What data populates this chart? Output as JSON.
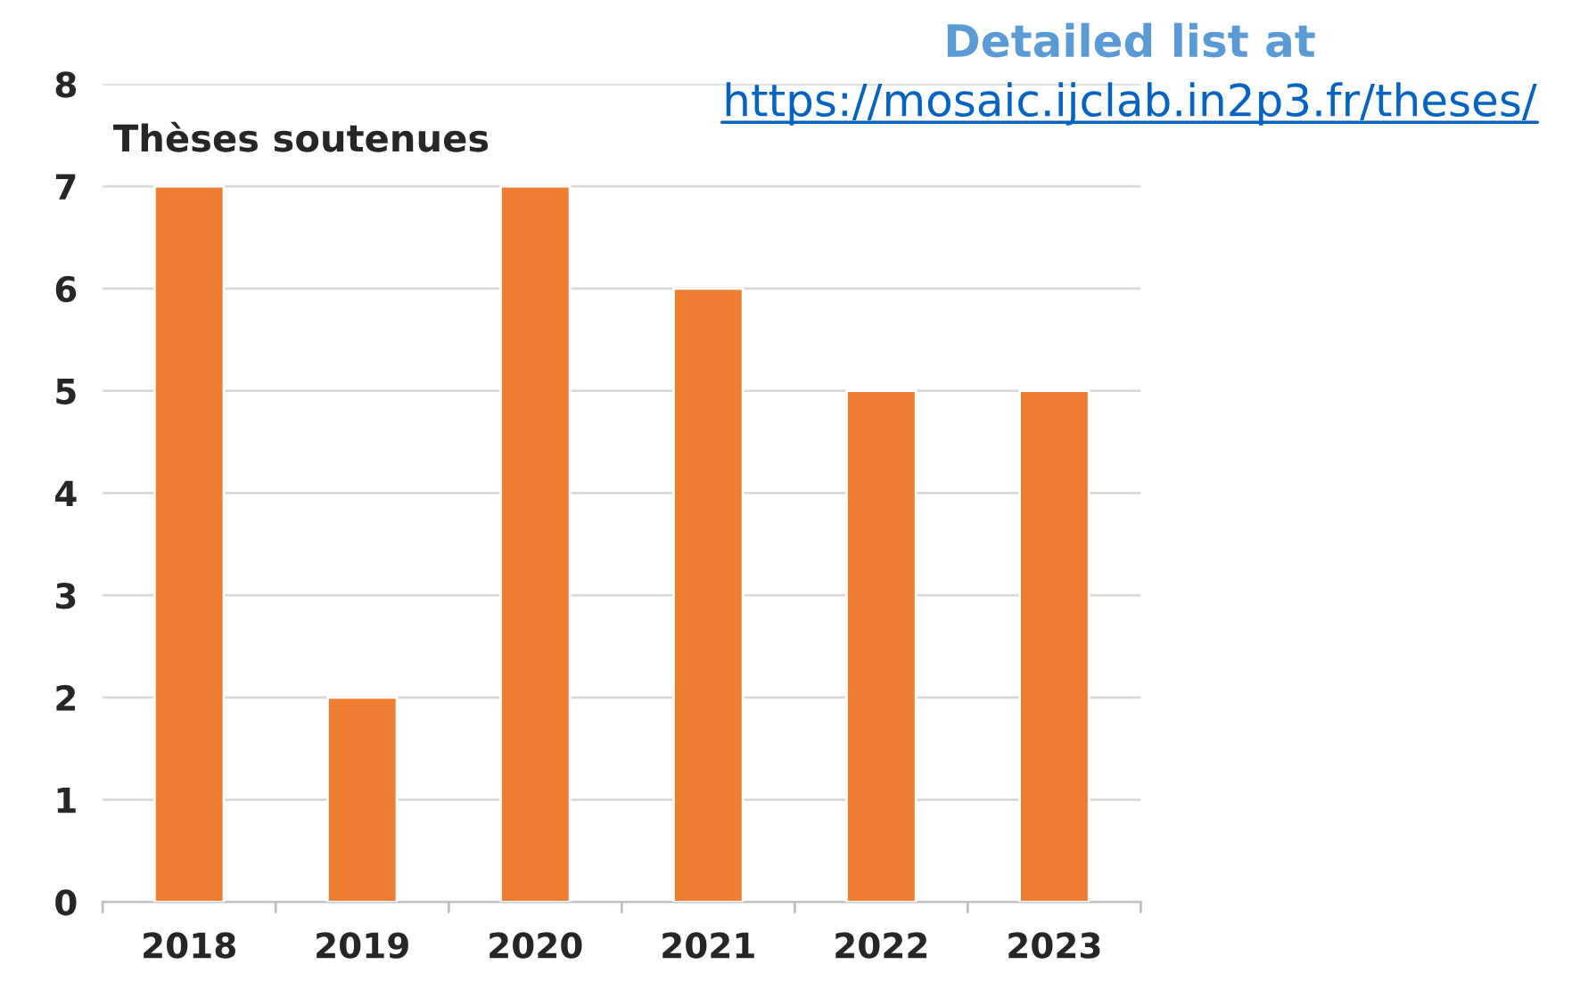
{
  "chart_data": {
    "type": "bar",
    "title": "Thèses soutenues",
    "categories": [
      "2018",
      "2019",
      "2020",
      "2021",
      "2022",
      "2023"
    ],
    "values": [
      7,
      2,
      7,
      6,
      5,
      5
    ],
    "color": "#ed7d31",
    "ylim": [
      0,
      8
    ],
    "yticks": [
      0,
      1,
      2,
      3,
      4,
      5,
      6,
      7,
      8
    ],
    "grid": "y",
    "annotations": [
      "Detailed list at",
      "https://mosaic.ijclab.in2p3.fr/theses/"
    ]
  }
}
